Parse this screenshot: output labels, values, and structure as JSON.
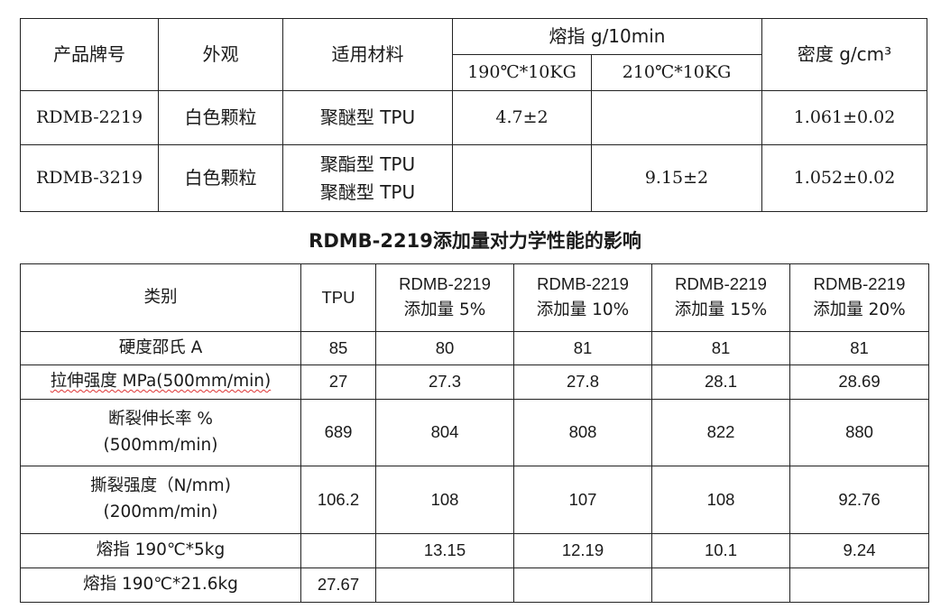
{
  "spec_table": {
    "headers": {
      "product": "产品牌号",
      "appearance": "外观",
      "material": "适用材料",
      "melt_index": "熔指 g/10min",
      "mi_190": "190℃*10KG",
      "mi_210": "210℃*10KG",
      "density": "密度 g/cm³"
    },
    "rows": [
      {
        "product": "RDMB-2219",
        "appearance": "白色颗粒",
        "material_1": "聚醚型 TPU",
        "material_2": "",
        "mi_190": "4.7±2",
        "mi_210": "",
        "density": "1.061±0.02"
      },
      {
        "product": "RDMB-3219",
        "appearance": "白色颗粒",
        "material_1": "聚酯型 TPU",
        "material_2": "聚醚型 TPU",
        "mi_190": "",
        "mi_210": "9.15±2",
        "density": "1.052±0.02"
      }
    ]
  },
  "section_title": "RDMB-2219添加量对力学性能的影响",
  "perf_table": {
    "headers": [
      {
        "l1": "类别",
        "l2": ""
      },
      {
        "l1": "TPU",
        "l2": ""
      },
      {
        "l1": "RDMB-2219",
        "l2": "添加量 5%"
      },
      {
        "l1": "RDMB-2219",
        "l2": "添加量 10%"
      },
      {
        "l1": "RDMB-2219",
        "l2": "添加量 15%"
      },
      {
        "l1": "RDMB-2219",
        "l2": "添加量 20%"
      }
    ],
    "rows": [
      {
        "l1": "硬度邵氏 A",
        "l2": "",
        "tpu": "85",
        "p5": "80",
        "p10": "81",
        "p15": "81",
        "p20": "81"
      },
      {
        "l1": "拉伸强度 MPa(500mm/min)",
        "l2": "",
        "tpu": "27",
        "p5": "27.3",
        "p10": "27.8",
        "p15": "28.1",
        "p20": "28.69"
      },
      {
        "l1": "断裂伸长率 %",
        "l2": "(500mm/min)",
        "tpu": "689",
        "p5": "804",
        "p10": "808",
        "p15": "822",
        "p20": "880"
      },
      {
        "l1": "撕裂强度（N/mm)",
        "l2": "(200mm/min)",
        "tpu": "106.2",
        "p5": "108",
        "p10": "107",
        "p15": "108",
        "p20": "92.76"
      },
      {
        "l1": "熔指 190℃*5kg",
        "l2": "",
        "tpu": "",
        "p5": "13.15",
        "p10": "12.19",
        "p15": "10.1",
        "p20": "9.24"
      },
      {
        "l1": "熔指 190℃*21.6kg",
        "l2": "",
        "tpu": "27.67",
        "p5": "",
        "p10": "",
        "p15": "",
        "p20": ""
      }
    ]
  }
}
